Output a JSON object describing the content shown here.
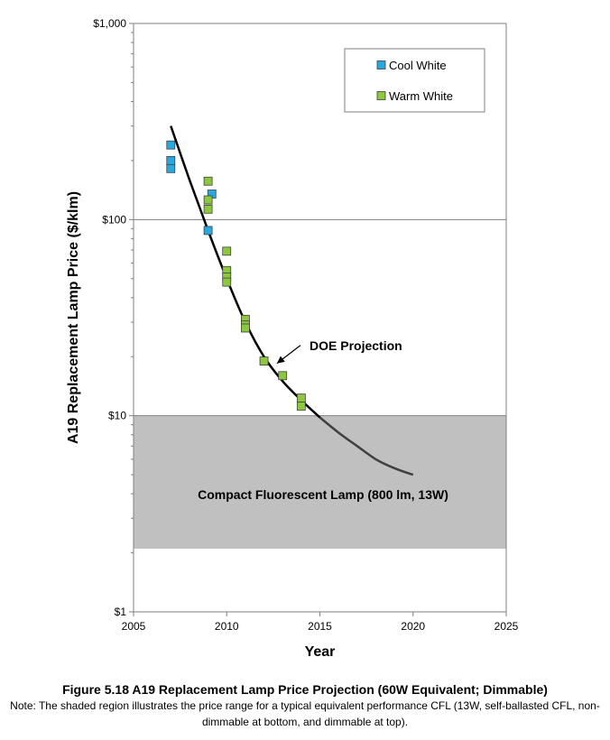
{
  "chart_data": {
    "type": "scatter",
    "xlabel": "Year",
    "ylabel": "A19 Replacement  Lamp Price ($/klm)",
    "xlim": [
      2005,
      2025
    ],
    "x_ticks": [
      2005,
      2010,
      2015,
      2020,
      2025
    ],
    "ylim": [
      1,
      1000
    ],
    "yscale": "log",
    "y_ticks": [
      1,
      10,
      100,
      1000
    ],
    "y_tick_labels": [
      "$1",
      "$10",
      "$100",
      "$1,000"
    ],
    "grid": "horizontal major gridlines",
    "legend_position": "top-right",
    "series": [
      {
        "name": "Cool White",
        "color": "#29A8E0",
        "marker": "square",
        "points": [
          [
            2007,
            240
          ],
          [
            2007,
            200
          ],
          [
            2007,
            182
          ],
          [
            2009,
            88
          ],
          [
            2009.2,
            135
          ]
        ]
      },
      {
        "name": "Warm White",
        "color": "#8DC63F",
        "marker": "square",
        "points": [
          [
            2009,
            157
          ],
          [
            2009,
            126
          ],
          [
            2009,
            113
          ],
          [
            2010,
            69
          ],
          [
            2010,
            55
          ],
          [
            2010,
            51
          ],
          [
            2010,
            48
          ],
          [
            2011,
            31
          ],
          [
            2011,
            29
          ],
          [
            2011,
            28
          ],
          [
            2012,
            19
          ],
          [
            2013,
            16
          ],
          [
            2014,
            12.3
          ],
          [
            2014,
            11.2
          ]
        ]
      }
    ],
    "projection": {
      "color": "#000000",
      "color_after_2015": "#404040",
      "points": [
        [
          2007,
          300
        ],
        [
          2008,
          160
        ],
        [
          2009,
          88
        ],
        [
          2010,
          50
        ],
        [
          2011,
          30
        ],
        [
          2012,
          20
        ],
        [
          2013,
          15
        ],
        [
          2014,
          12
        ],
        [
          2015,
          9.8
        ],
        [
          2016,
          8.2
        ],
        [
          2017,
          7
        ],
        [
          2018,
          6
        ],
        [
          2019,
          5.4
        ],
        [
          2020,
          5
        ]
      ]
    },
    "annotations": {
      "projection_label": "DOE Projection",
      "projection_label_position": [
        2014.5,
        18
      ],
      "arrow_tip": [
        2012.7,
        18.5
      ],
      "cfl_band": {
        "label": "Compact Fluorescent Lamp (800 lm, 13W)",
        "y_min": 2.1,
        "y_max": 10,
        "color": "#C0C0C0"
      }
    }
  },
  "caption": {
    "title": "Figure 5.18 A19 Replacement Lamp Price Projection (60W Equivalent; Dimmable)",
    "note": "Note: The shaded region illustrates the price range for a typical equivalent performance CFL (13W, self-ballasted CFL, non-dimmable at bottom, and dimmable at top)."
  }
}
